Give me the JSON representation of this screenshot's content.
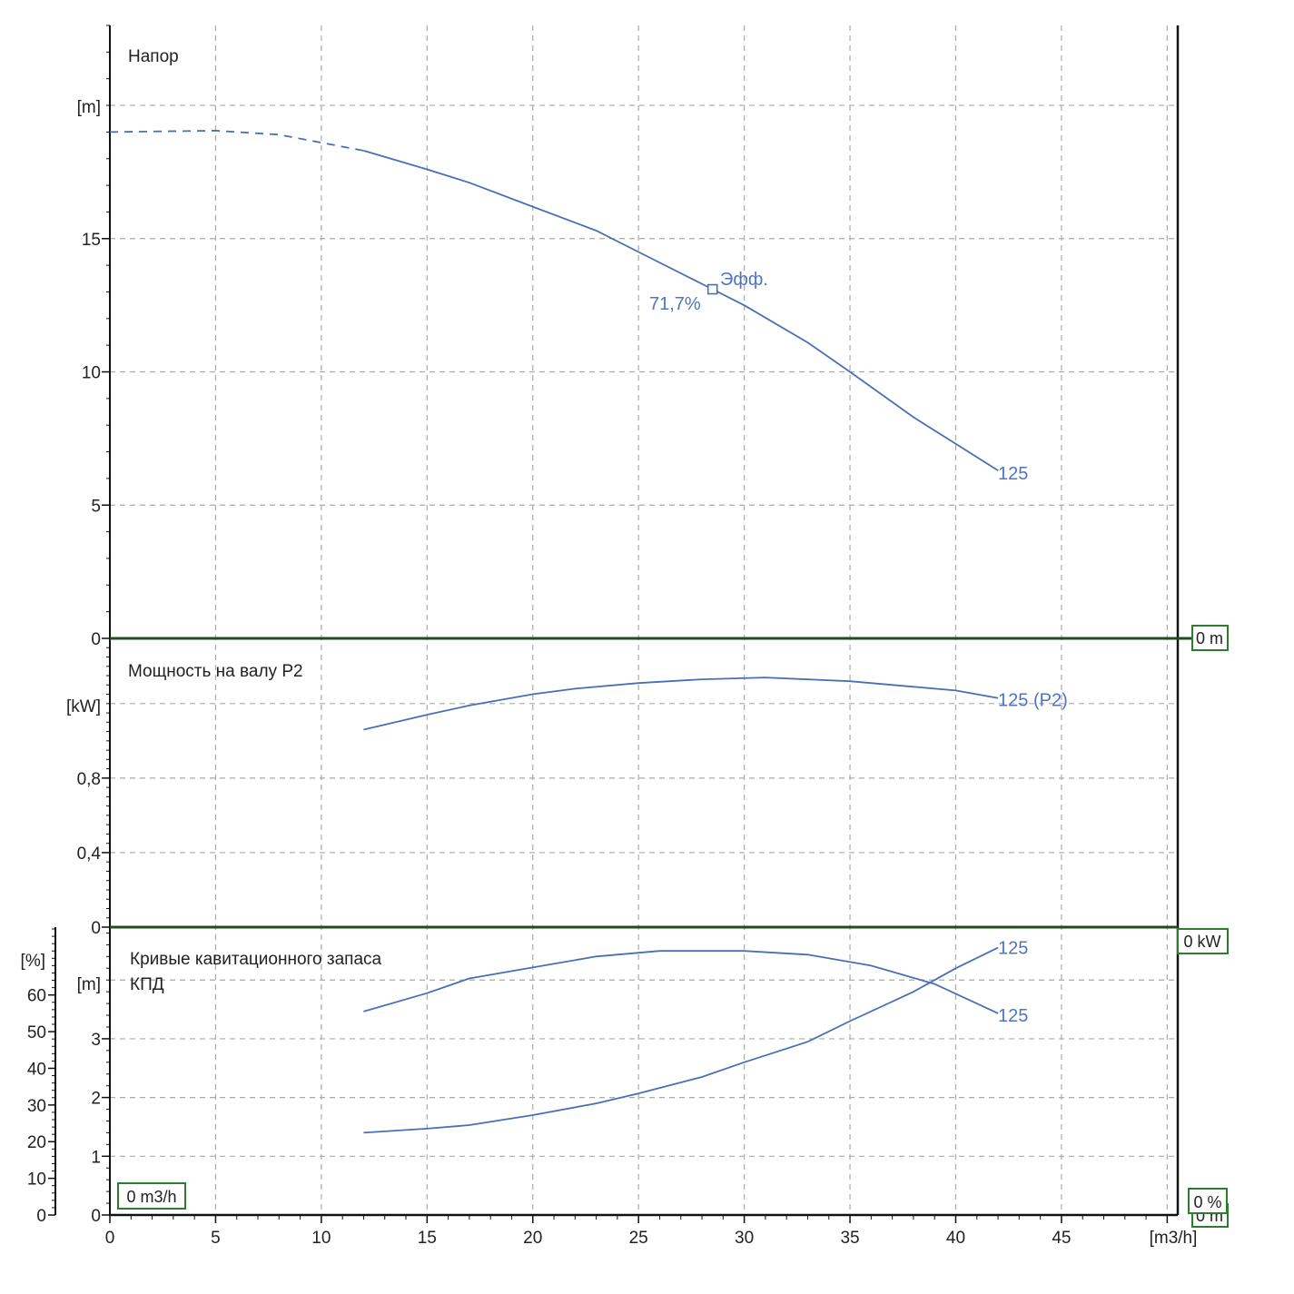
{
  "colors": {
    "curve": "#4a6fb5",
    "label": "#4f74c4",
    "grid": "#aaaaaa",
    "axis": "#111111",
    "divider": "#1f4d1f",
    "readout_border": "#2e7d2e"
  },
  "x_axis": {
    "unit": "[m3/h]",
    "ticks": [
      0,
      5,
      10,
      15,
      20,
      25,
      30,
      35,
      40,
      45
    ],
    "range": [
      0,
      50.5
    ]
  },
  "readouts": {
    "head": "0 m",
    "power": "0 kW",
    "flow": "0 m3/h",
    "efficiency": "0 %",
    "npsh": "0 m"
  },
  "chart_data": [
    {
      "type": "line",
      "panel": "head",
      "title": "Напор",
      "ylabel": "[m]",
      "ylim": [
        0,
        23
      ],
      "yticks": [
        "0",
        "5",
        "10",
        "15"
      ],
      "ytick_values": [
        0,
        5,
        10,
        15
      ],
      "grid": true,
      "series": [
        {
          "name": "125",
          "dashed_segment": [
            [
              0,
              19.0
            ],
            [
              5,
              19.05
            ],
            [
              8,
              18.9
            ],
            [
              10,
              18.6
            ],
            [
              12,
              18.3
            ]
          ],
          "points": [
            [
              12,
              18.3
            ],
            [
              15,
              17.6
            ],
            [
              17,
              17.1
            ],
            [
              20,
              16.2
            ],
            [
              23,
              15.3
            ],
            [
              25,
              14.5
            ],
            [
              28.5,
              13.1
            ],
            [
              30,
              12.5
            ],
            [
              33,
              11.1
            ],
            [
              35,
              10.0
            ],
            [
              38,
              8.3
            ],
            [
              40,
              7.3
            ],
            [
              42,
              6.3
            ]
          ],
          "end_label": "125"
        }
      ],
      "annotations": {
        "marker": [
          28.5,
          13.1
        ],
        "efficiency_label": "Эфф.",
        "efficiency_value": "71,7%"
      }
    },
    {
      "type": "line",
      "panel": "power",
      "title": "Мощность на валу P2",
      "ylabel": "[kW]",
      "ylim": [
        0,
        1.55
      ],
      "yticks": [
        "0",
        "0,4",
        "0,8"
      ],
      "ytick_values": [
        0,
        0.4,
        0.8
      ],
      "grid": true,
      "series": [
        {
          "name": "125 (P2)",
          "points": [
            [
              12,
              1.06
            ],
            [
              15,
              1.14
            ],
            [
              17,
              1.19
            ],
            [
              20,
              1.25
            ],
            [
              22,
              1.28
            ],
            [
              25,
              1.31
            ],
            [
              28,
              1.33
            ],
            [
              31,
              1.34
            ],
            [
              35,
              1.32
            ],
            [
              38,
              1.29
            ],
            [
              40,
              1.27
            ],
            [
              42,
              1.23
            ]
          ],
          "end_label": "125 (P2)"
        }
      ]
    },
    {
      "type": "line",
      "panel": "npsh_efficiency",
      "title": "Кривые кавитационного запаса",
      "title2": "КПД",
      "ylabel_left": "[%]",
      "ylabel": "[m]",
      "ylim_m": [
        0,
        4.9
      ],
      "yticks_m": [
        "0",
        "1",
        "2",
        "3"
      ],
      "ytick_values_m": [
        0,
        1,
        2,
        3
      ],
      "ylim_pct": [
        0,
        78.5
      ],
      "yticks_pct": [
        "0",
        "10",
        "20",
        "30",
        "40",
        "50",
        "60"
      ],
      "ytick_values_pct": [
        0,
        10,
        20,
        30,
        40,
        50,
        60
      ],
      "grid": true,
      "series": [
        {
          "name": "125",
          "axis": "%",
          "points": [
            [
              12,
              55.5
            ],
            [
              15,
              60.5
            ],
            [
              17,
              64.5
            ],
            [
              20,
              67.5
            ],
            [
              23,
              70.5
            ],
            [
              26,
              72
            ],
            [
              30,
              72
            ],
            [
              33,
              71
            ],
            [
              36,
              68
            ],
            [
              39,
              63
            ],
            [
              42,
              55
            ]
          ],
          "end_label": "125"
        },
        {
          "name": "125",
          "axis": "m",
          "points": [
            [
              12,
              1.4
            ],
            [
              15,
              1.47
            ],
            [
              17,
              1.53
            ],
            [
              20,
              1.7
            ],
            [
              23,
              1.9
            ],
            [
              25,
              2.07
            ],
            [
              28,
              2.35
            ],
            [
              30,
              2.6
            ],
            [
              33,
              2.95
            ],
            [
              35,
              3.3
            ],
            [
              38,
              3.8
            ],
            [
              40,
              4.2
            ],
            [
              42,
              4.55
            ]
          ],
          "end_label": "125"
        }
      ]
    }
  ]
}
